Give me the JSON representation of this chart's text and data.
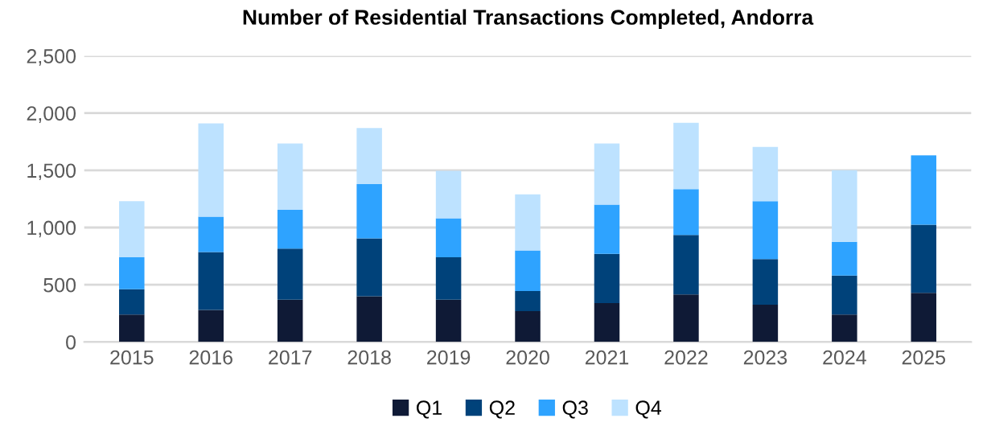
{
  "chart_data": {
    "type": "bar",
    "stacked": true,
    "title": "Number of Residential Transactions Completed, Andorra",
    "categories": [
      "2015",
      "2016",
      "2017",
      "2018",
      "2019",
      "2020",
      "2021",
      "2022",
      "2023",
      "2024",
      "2025"
    ],
    "series": [
      {
        "name": "Q1",
        "color": "#0f1a36",
        "values": [
          240,
          280,
          370,
          400,
          370,
          270,
          340,
          415,
          325,
          240,
          430
        ]
      },
      {
        "name": "Q2",
        "color": "#00427a",
        "values": [
          220,
          505,
          445,
          505,
          370,
          175,
          430,
          520,
          400,
          340,
          595
        ]
      },
      {
        "name": "Q3",
        "color": "#2ea3ff",
        "values": [
          280,
          310,
          340,
          475,
          340,
          355,
          430,
          400,
          505,
          295,
          605
        ]
      },
      {
        "name": "Q4",
        "color": "#bde2ff",
        "values": [
          490,
          815,
          580,
          490,
          415,
          490,
          535,
          580,
          475,
          625,
          null
        ]
      }
    ],
    "ylim": [
      0,
      2500
    ],
    "yticks": [
      {
        "value": 0,
        "label": "0"
      },
      {
        "value": 500,
        "label": "500"
      },
      {
        "value": 1000,
        "label": "1,000"
      },
      {
        "value": 1500,
        "label": "1,500"
      },
      {
        "value": 2000,
        "label": "2,000"
      },
      {
        "value": 2500,
        "label": "2,500"
      }
    ],
    "grid": "y",
    "legend": "bottom"
  }
}
